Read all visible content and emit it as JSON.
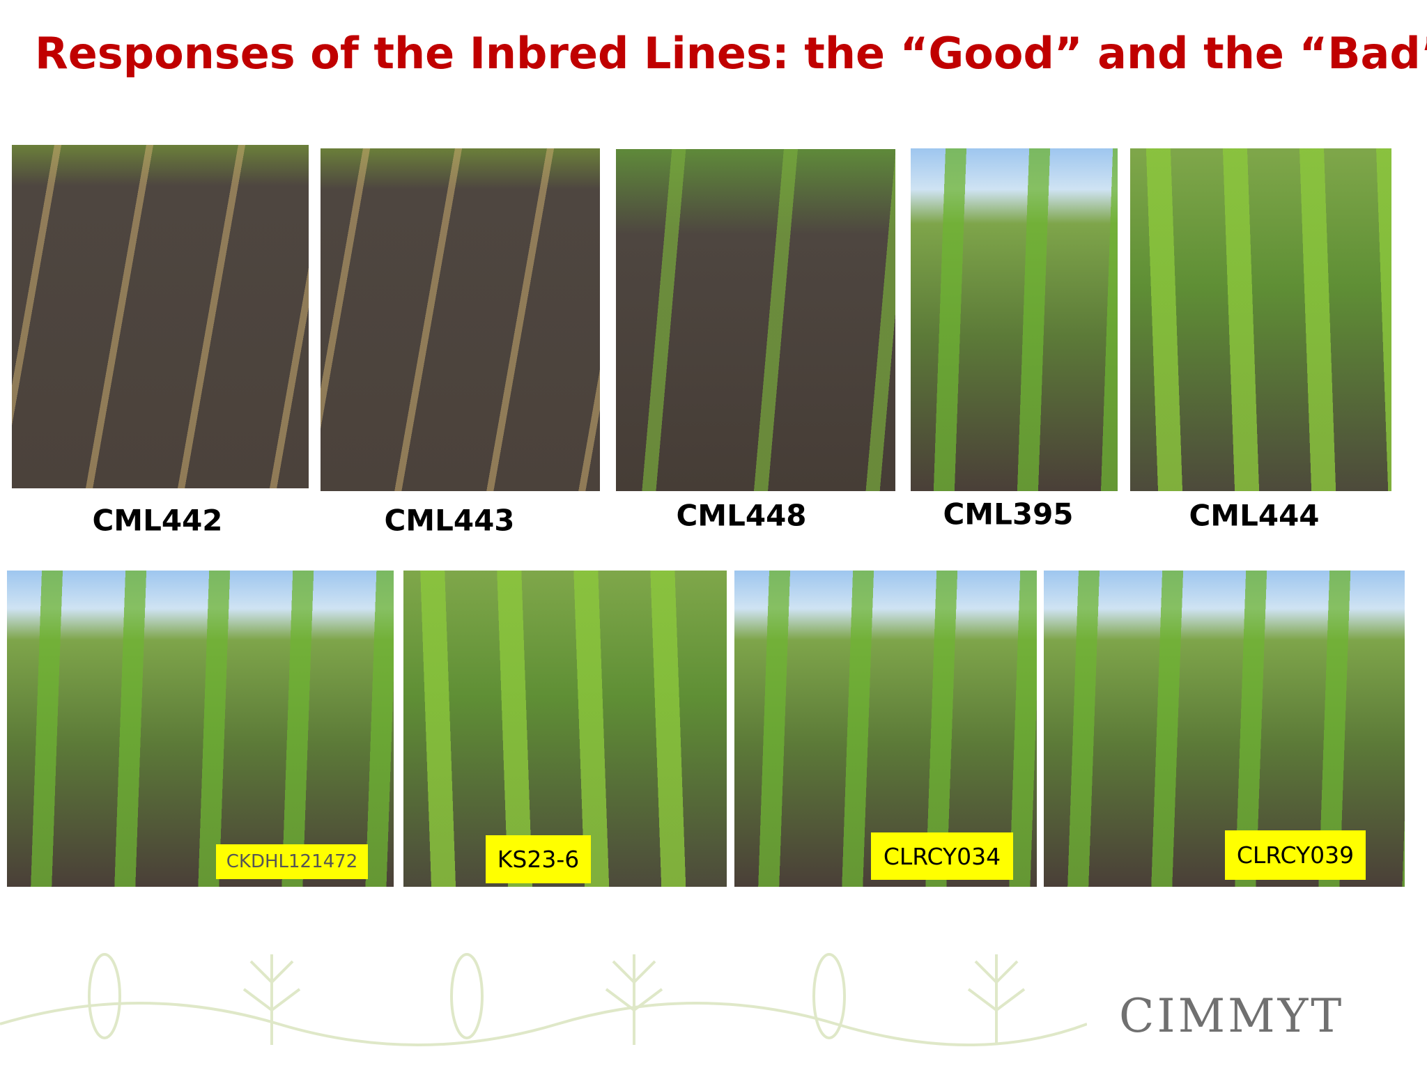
{
  "header": {
    "title": "Responses of the Inbred Lines: the “Good” and the “Bad”"
  },
  "top_photos": [
    {
      "label": "CML442"
    },
    {
      "label": "CML443"
    },
    {
      "label": "CML448"
    },
    {
      "label": "CML395"
    },
    {
      "label": "CML444"
    }
  ],
  "bottom_photos": [
    {
      "label": "CKDHL121472"
    },
    {
      "label": "KS23-6"
    },
    {
      "label": "CLRCY034"
    },
    {
      "label": "CLRCY039"
    }
  ],
  "logo": {
    "text": "CIMMYT"
  }
}
